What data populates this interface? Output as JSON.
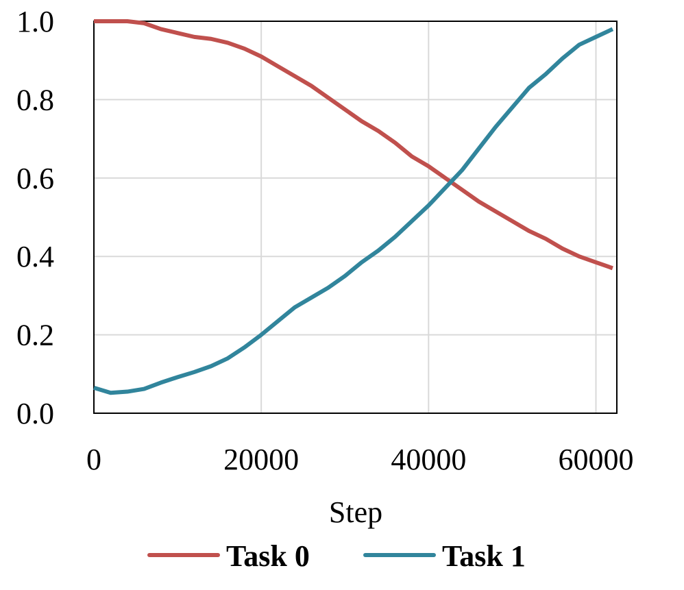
{
  "chart_data": {
    "type": "line",
    "xlabel": "Step",
    "x": [
      0,
      2000,
      4000,
      6000,
      8000,
      10000,
      12000,
      14000,
      16000,
      18000,
      20000,
      22000,
      24000,
      26000,
      28000,
      30000,
      32000,
      34000,
      36000,
      38000,
      40000,
      42000,
      44000,
      46000,
      48000,
      50000,
      52000,
      54000,
      56000,
      58000,
      60000,
      62000
    ],
    "series": [
      {
        "name": "Task 0",
        "color": "#c0504d",
        "values": [
          1.0,
          1.0,
          1.0,
          0.995,
          0.98,
          0.97,
          0.96,
          0.955,
          0.945,
          0.93,
          0.91,
          0.885,
          0.86,
          0.835,
          0.805,
          0.775,
          0.745,
          0.72,
          0.69,
          0.655,
          0.63,
          0.6,
          0.57,
          0.54,
          0.515,
          0.49,
          0.465,
          0.445,
          0.42,
          0.4,
          0.385,
          0.37
        ]
      },
      {
        "name": "Task 1",
        "color": "#31859c",
        "values": [
          0.065,
          0.052,
          0.055,
          0.062,
          0.078,
          0.092,
          0.105,
          0.12,
          0.14,
          0.168,
          0.2,
          0.235,
          0.27,
          0.295,
          0.32,
          0.35,
          0.385,
          0.415,
          0.45,
          0.49,
          0.53,
          0.575,
          0.62,
          0.675,
          0.73,
          0.78,
          0.83,
          0.865,
          0.905,
          0.94,
          0.96,
          0.98
        ]
      }
    ],
    "xlim": [
      0,
      62500
    ],
    "xticks": [
      0,
      20000,
      40000,
      60000
    ],
    "ylim": [
      0,
      1
    ],
    "yticks": [
      {
        "value": 0,
        "label": "0.0"
      },
      0.2,
      0.4,
      0.6,
      0.8,
      {
        "value": 1,
        "label": "1.0"
      }
    ],
    "grid": true,
    "legend": "bottom"
  }
}
